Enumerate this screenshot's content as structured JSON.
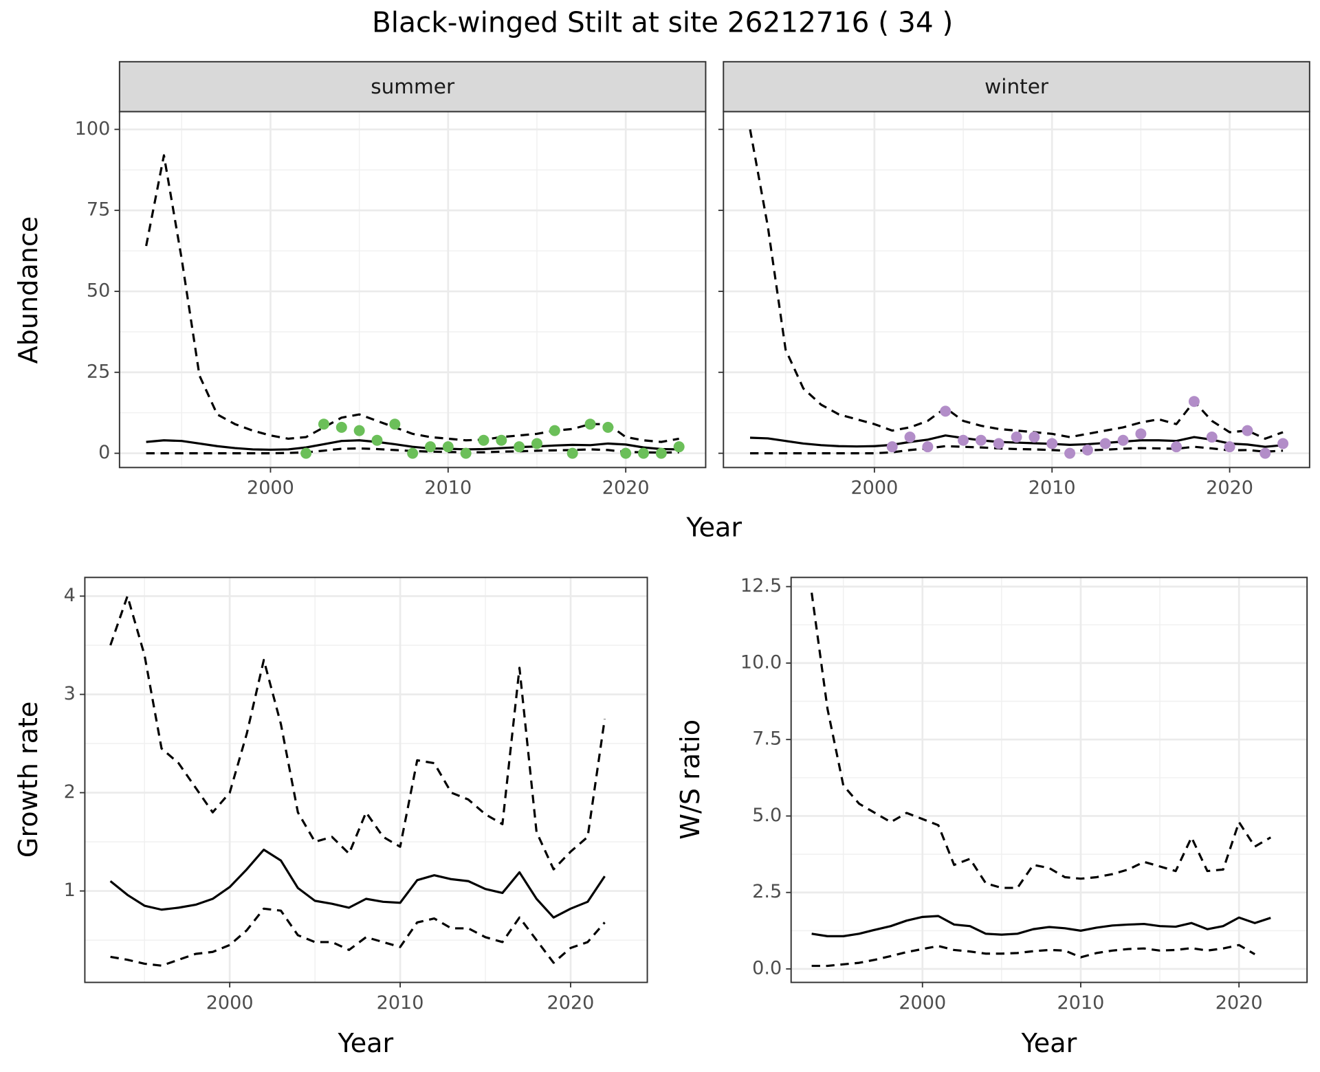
{
  "title": "Black-winged Stilt at site 26212716 ( 34 )",
  "chart_data": [
    {
      "type": "line",
      "title": "summer",
      "xlabel": "Year",
      "ylabel": "Abundance",
      "x": [
        1993,
        1994,
        1995,
        1996,
        1997,
        1998,
        1999,
        2000,
        2001,
        2002,
        2003,
        2004,
        2005,
        2006,
        2007,
        2008,
        2009,
        2010,
        2011,
        2012,
        2013,
        2014,
        2015,
        2016,
        2017,
        2018,
        2019,
        2020,
        2021,
        2022,
        2023
      ],
      "xlim": [
        1991.5,
        2024.5
      ],
      "xticks": [
        2000,
        2010,
        2020
      ],
      "xminor": [
        1995,
        2005,
        2015
      ],
      "ylim": [
        -4.4,
        105.5
      ],
      "yticks": [
        0,
        25,
        50,
        75,
        100
      ],
      "yminor": [
        12.5,
        37.5,
        62.5,
        87.5
      ],
      "grid": true,
      "series": [
        {
          "dash": "dashed",
          "color": "#000000",
          "values": [
            64,
            92,
            60,
            24,
            12,
            9,
            7,
            5.5,
            4.5,
            5,
            8,
            11,
            12,
            10,
            8,
            6,
            5,
            4.5,
            4,
            4.2,
            5,
            5.5,
            6,
            7,
            7.5,
            9,
            9,
            5,
            4,
            3.5,
            4.5
          ]
        },
        {
          "dash": "solid",
          "color": "#000000",
          "values": [
            3.5,
            4,
            3.8,
            3,
            2.2,
            1.6,
            1.2,
            1.1,
            1.2,
            1.8,
            2.8,
            3.8,
            4,
            3.5,
            2.8,
            2,
            1.5,
            1.4,
            1.2,
            1.3,
            1.6,
            1.9,
            2.1,
            2.4,
            2.6,
            2.5,
            3,
            2.7,
            1.8,
            1.3,
            1.2
          ]
        },
        {
          "dash": "dashed",
          "color": "#000000",
          "values": [
            0,
            0,
            0,
            0,
            0,
            0,
            0,
            0,
            0.1,
            0.3,
            0.8,
            1.4,
            1.5,
            1.3,
            1,
            0.7,
            0.5,
            0.4,
            0.3,
            0.3,
            0.5,
            0.6,
            0.8,
            0.9,
            1,
            1.2,
            1,
            0.4,
            0.3,
            0.2,
            0.3
          ]
        },
        {
          "marker": true,
          "color": "#6bbf59",
          "values": [
            null,
            null,
            null,
            null,
            null,
            null,
            null,
            null,
            null,
            0,
            9,
            8,
            7,
            4,
            9,
            0,
            2,
            2,
            0,
            4,
            4,
            2,
            3,
            7,
            0,
            9,
            8,
            0,
            0,
            0,
            2
          ]
        }
      ]
    },
    {
      "type": "line",
      "title": "winter",
      "x": [
        1993,
        1994,
        1995,
        1996,
        1997,
        1998,
        1999,
        2000,
        2001,
        2002,
        2003,
        2004,
        2005,
        2006,
        2007,
        2008,
        2009,
        2010,
        2011,
        2012,
        2013,
        2014,
        2015,
        2016,
        2017,
        2018,
        2019,
        2020,
        2021,
        2022,
        2023
      ],
      "xlim": [
        1991.5,
        2024.5
      ],
      "xticks": [
        2000,
        2010,
        2020
      ],
      "xminor": [
        1995,
        2005,
        2015
      ],
      "ylim": [
        -4.4,
        105.5
      ],
      "yticks": [
        0,
        25,
        50,
        75,
        100
      ],
      "yminor": [
        12.5,
        37.5,
        62.5,
        87.5
      ],
      "grid": true,
      "series": [
        {
          "dash": "dashed",
          "color": "#000000",
          "values": [
            100,
            70,
            32,
            20,
            15,
            12,
            10.5,
            9,
            7,
            8,
            10,
            14,
            10,
            8.5,
            7.5,
            7,
            6.5,
            6,
            5,
            6,
            7,
            8,
            9.5,
            10.5,
            9,
            16,
            10,
            6.5,
            7,
            4.5,
            6.5
          ]
        },
        {
          "dash": "solid",
          "color": "#000000",
          "values": [
            4.8,
            4.6,
            3.8,
            3,
            2.5,
            2.2,
            2.1,
            2.2,
            2.6,
            3.5,
            4.2,
            5.5,
            4.7,
            4,
            3.5,
            3.3,
            3.1,
            2.9,
            2.6,
            2.8,
            3.2,
            3.6,
            4,
            4,
            3.8,
            5,
            4.2,
            3,
            2.7,
            2,
            2.5
          ]
        },
        {
          "dash": "dashed",
          "color": "#000000",
          "values": [
            0,
            0,
            0,
            0,
            0,
            0,
            0,
            0,
            0.3,
            1,
            1.5,
            2.2,
            2,
            1.8,
            1.5,
            1.3,
            1.2,
            1,
            0.7,
            0.9,
            1.1,
            1.4,
            1.6,
            1.5,
            1.4,
            2,
            1.5,
            0.9,
            1,
            0.5,
            0.8
          ]
        },
        {
          "marker": true,
          "color": "#b28dc8",
          "values": [
            null,
            null,
            null,
            null,
            null,
            null,
            null,
            null,
            2,
            5,
            2,
            13,
            4,
            4,
            3,
            5,
            5,
            3,
            0,
            1,
            3,
            4,
            6,
            null,
            2,
            16,
            5,
            2,
            7,
            0,
            3
          ]
        }
      ]
    },
    {
      "type": "line",
      "xlabel": "Year",
      "ylabel": "Growth rate",
      "x": [
        1993,
        1994,
        1995,
        1996,
        1997,
        1998,
        1999,
        2000,
        2001,
        2002,
        2003,
        2004,
        2005,
        2006,
        2007,
        2008,
        2009,
        2010,
        2011,
        2012,
        2013,
        2014,
        2015,
        2016,
        2017,
        2018,
        2019,
        2020,
        2021,
        2022
      ],
      "xlim": [
        1991.5,
        2024.5
      ],
      "xticks": [
        2000,
        2010,
        2020
      ],
      "xminor": [
        1995,
        2005,
        2015
      ],
      "ylim": [
        0.07,
        4.19
      ],
      "yticks": [
        1,
        2,
        3,
        4
      ],
      "yminor": [
        0.5,
        1.5,
        2.5,
        3.5
      ],
      "grid": true,
      "series": [
        {
          "dash": "dashed",
          "color": "#000000",
          "values": [
            3.5,
            4.0,
            3.4,
            2.45,
            2.3,
            2.05,
            1.8,
            2.0,
            2.6,
            3.35,
            2.7,
            1.8,
            1.5,
            1.55,
            1.38,
            1.8,
            1.55,
            1.45,
            2.33,
            2.3,
            2.0,
            1.93,
            1.78,
            1.68,
            3.27,
            1.6,
            1.22,
            1.4,
            1.55,
            2.75
          ]
        },
        {
          "dash": "solid",
          "color": "#000000",
          "values": [
            1.1,
            0.96,
            0.85,
            0.81,
            0.83,
            0.86,
            0.92,
            1.04,
            1.22,
            1.42,
            1.31,
            1.03,
            0.9,
            0.87,
            0.83,
            0.92,
            0.89,
            0.88,
            1.11,
            1.16,
            1.12,
            1.1,
            1.02,
            0.98,
            1.19,
            0.92,
            0.73,
            0.82,
            0.89,
            1.15
          ]
        },
        {
          "dash": "dashed",
          "color": "#000000",
          "values": [
            0.33,
            0.3,
            0.26,
            0.24,
            0.3,
            0.36,
            0.38,
            0.45,
            0.6,
            0.82,
            0.8,
            0.55,
            0.48,
            0.48,
            0.4,
            0.53,
            0.48,
            0.43,
            0.68,
            0.72,
            0.62,
            0.62,
            0.53,
            0.48,
            0.73,
            0.5,
            0.27,
            0.42,
            0.48,
            0.68
          ]
        }
      ]
    },
    {
      "type": "line",
      "xlabel": "Year",
      "ylabel": "W/S ratio",
      "x": [
        1993,
        1994,
        1995,
        1996,
        1997,
        1998,
        1999,
        2000,
        2001,
        2002,
        2003,
        2004,
        2005,
        2006,
        2007,
        2008,
        2009,
        2010,
        2011,
        2012,
        2013,
        2014,
        2015,
        2016,
        2017,
        2018,
        2019,
        2020,
        2021,
        2022
      ],
      "xlim": [
        1991.7,
        2024.3
      ],
      "xticks": [
        2000,
        2010,
        2020
      ],
      "xminor": [
        1995,
        2005,
        2015
      ],
      "ylim": [
        -0.44,
        12.8
      ],
      "yticks": [
        {
          "value": 0,
          "label": "0.0"
        },
        2.5,
        {
          "value": 5,
          "label": "5.0"
        },
        7.5,
        {
          "value": 10,
          "label": "10.0"
        },
        12.5
      ],
      "yminor": [
        1.25,
        3.75,
        6.25,
        8.75,
        11.25
      ],
      "grid": true,
      "series": [
        {
          "dash": "dashed",
          "color": "#000000",
          "values": [
            12.3,
            8.5,
            6.0,
            5.4,
            5.1,
            4.8,
            5.1,
            4.9,
            4.7,
            3.4,
            3.6,
            2.8,
            2.65,
            2.65,
            3.4,
            3.3,
            3.0,
            2.95,
            3.0,
            3.1,
            3.25,
            3.5,
            3.35,
            3.2,
            4.3,
            3.2,
            3.25,
            4.8,
            4.0,
            4.3
          ]
        },
        {
          "dash": "solid",
          "color": "#000000",
          "values": [
            1.15,
            1.07,
            1.07,
            1.15,
            1.28,
            1.4,
            1.58,
            1.7,
            1.73,
            1.45,
            1.4,
            1.15,
            1.12,
            1.15,
            1.3,
            1.37,
            1.33,
            1.25,
            1.35,
            1.42,
            1.45,
            1.47,
            1.4,
            1.38,
            1.5,
            1.3,
            1.4,
            1.68,
            1.5,
            1.67
          ]
        },
        {
          "dash": "dashed",
          "color": "#000000",
          "values": [
            0.1,
            0.1,
            0.15,
            0.2,
            0.3,
            0.42,
            0.55,
            0.65,
            0.75,
            0.62,
            0.57,
            0.5,
            0.5,
            0.52,
            0.58,
            0.62,
            0.6,
            0.38,
            0.52,
            0.6,
            0.65,
            0.67,
            0.6,
            0.62,
            0.68,
            0.6,
            0.67,
            0.78,
            0.48,
            null
          ]
        }
      ]
    }
  ]
}
